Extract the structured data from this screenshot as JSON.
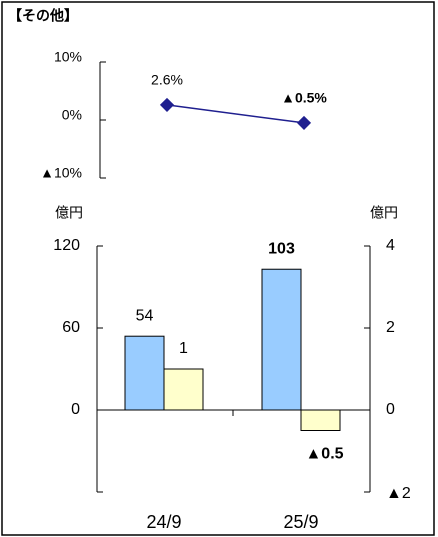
{
  "chart_data": [
    {
      "type": "line",
      "title": "【その他】",
      "values": [
        2.6,
        -0.5
      ],
      "value_labels": [
        "2.6%",
        "▲0.5%"
      ],
      "color": "#1f1f8f",
      "ylim": [
        -10,
        10
      ],
      "yticks": [
        {
          "value": 10,
          "label": "10%"
        },
        {
          "value": 0,
          "label": "0%"
        },
        {
          "value": -10,
          "label": "▲10%"
        }
      ]
    },
    {
      "type": "bar",
      "categories": [
        "24/9",
        "25/9"
      ],
      "y_label": "億円",
      "y2_label": "億円",
      "series": [
        {
          "values": [
            54,
            103
          ],
          "color": "#99ccff"
        },
        {
          "values": [
            1,
            -0.5
          ],
          "value_labels": [
            "1",
            "▲0.5"
          ],
          "color": "#ffffcc",
          "axis": "y2"
        }
      ],
      "ylim": [
        -60,
        120
      ],
      "yticks": [
        0,
        60,
        120
      ],
      "y2lim": [
        -2,
        4
      ],
      "y2ticks": [
        0,
        2,
        4,
        {
          "value": -2,
          "label": "▲2"
        }
      ]
    }
  ]
}
